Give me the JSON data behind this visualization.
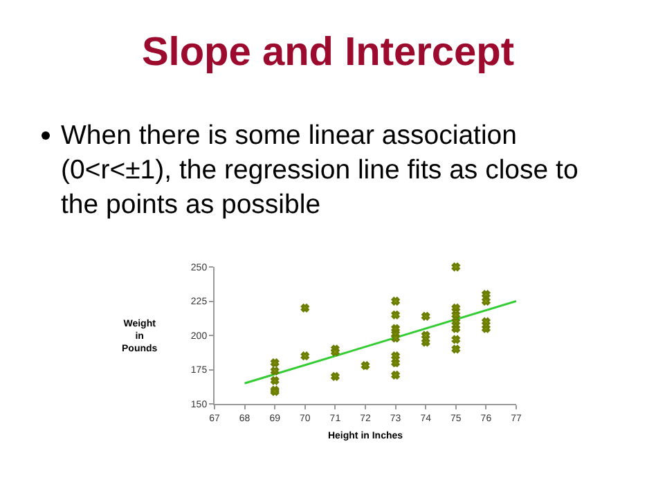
{
  "chart_data": {
    "type": "scatter",
    "title": "Slope and Intercept",
    "annotations": [
      "When there is some linear association (0<r<±1), the regression line fits as close to the points as possible"
    ],
    "xlabel": "Height in Inches",
    "ylabel": "Weight in Pounds",
    "marker": "cross",
    "grid": false,
    "xlim": [
      67,
      77
    ],
    "xticks": [
      67,
      68,
      69,
      70,
      71,
      72,
      73,
      74,
      75,
      76,
      77
    ],
    "ylim": [
      150,
      250
    ],
    "yticks": [
      150,
      175,
      200,
      225,
      250
    ],
    "series": [
      {
        "color": "#6b7d00",
        "x": [
          69,
          69,
          69,
          69,
          69,
          70,
          70,
          71,
          71,
          71,
          72,
          73,
          73,
          73,
          73,
          73,
          73,
          73,
          73,
          74,
          74,
          74,
          75,
          75,
          75,
          75,
          75,
          75,
          75,
          76,
          76,
          76,
          76
        ],
        "values": [
          180,
          174,
          167,
          160,
          159,
          220,
          185,
          190,
          188,
          170,
          178,
          225,
          215,
          205,
          201,
          198,
          185,
          180,
          171,
          214,
          200,
          195,
          250,
          220,
          215,
          210,
          205,
          197,
          190,
          230,
          225,
          210,
          205
        ]
      },
      {
        "type": "line",
        "color": "#33cc33",
        "line_style": "solid",
        "marker": "none",
        "x": [
          68,
          77
        ],
        "values": [
          165,
          225
        ]
      }
    ]
  }
}
